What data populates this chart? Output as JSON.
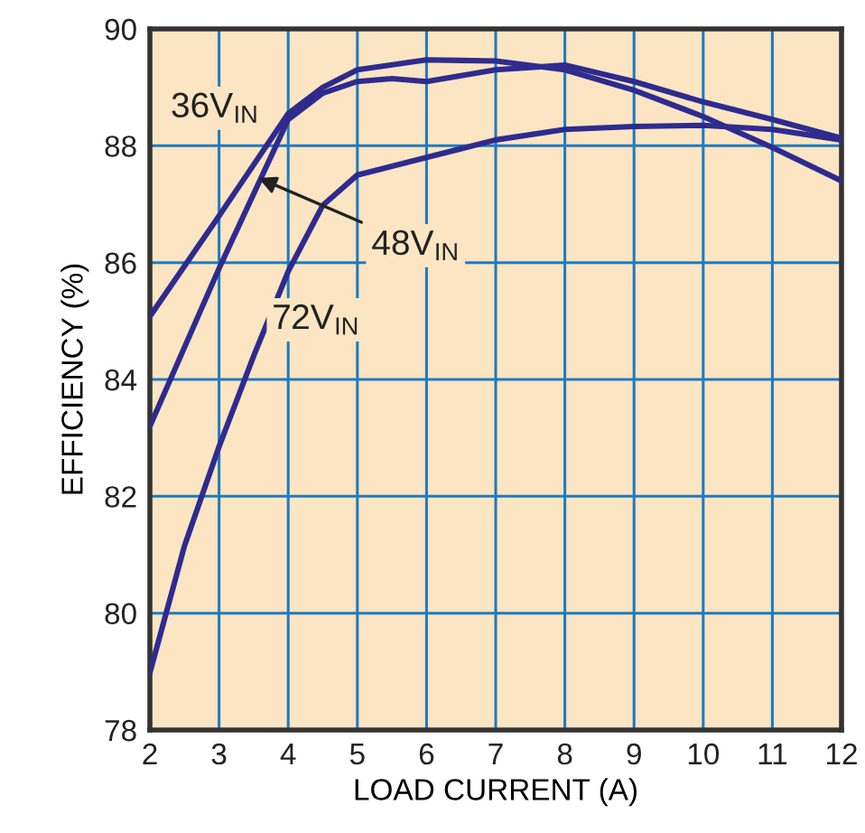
{
  "chart_data": {
    "type": "line",
    "xlabel": "LOAD CURRENT (A)",
    "ylabel": "EFFICIENCY (%)",
    "xlim": [
      2,
      12
    ],
    "ylim": [
      78,
      90
    ],
    "xticks": [
      2,
      3,
      4,
      5,
      6,
      7,
      8,
      9,
      10,
      11,
      12
    ],
    "yticks": [
      78,
      80,
      82,
      84,
      86,
      88,
      90
    ],
    "grid": true,
    "legend": false,
    "marker": "none",
    "line_style": "solid",
    "series": [
      {
        "color": "#2e2b8f",
        "x": [
          2,
          3,
          4,
          4.5,
          5,
          6,
          7,
          8,
          9,
          10,
          11,
          12
        ],
        "values": [
          85.08,
          86.8,
          88.55,
          89.0,
          89.3,
          89.47,
          89.45,
          89.3,
          88.95,
          88.5,
          87.97,
          87.4
        ]
      },
      {
        "color": "#2e2b8f",
        "x": [
          2,
          3,
          4,
          4.5,
          5,
          5.5,
          6,
          6.5,
          7,
          8,
          9,
          10,
          11,
          12
        ],
        "values": [
          83.2,
          85.9,
          88.45,
          88.9,
          89.1,
          89.15,
          89.1,
          89.2,
          89.3,
          89.38,
          89.1,
          88.75,
          88.45,
          88.13
        ]
      },
      {
        "color": "#2e2b8f",
        "x": [
          2,
          2.5,
          3,
          3.5,
          4,
          4.5,
          5,
          6,
          7,
          8,
          9,
          10,
          11,
          12
        ],
        "values": [
          78.98,
          81.15,
          82.85,
          84.4,
          85.85,
          86.98,
          87.5,
          87.8,
          88.1,
          88.28,
          88.33,
          88.35,
          88.28,
          88.1
        ]
      }
    ],
    "annotations": [
      "36V$_{IN}$",
      {
        "text": "48V$_{IN}$",
        "x": 3.57,
        "y": 87.45
      },
      "72V$_{IN}$"
    ]
  }
}
